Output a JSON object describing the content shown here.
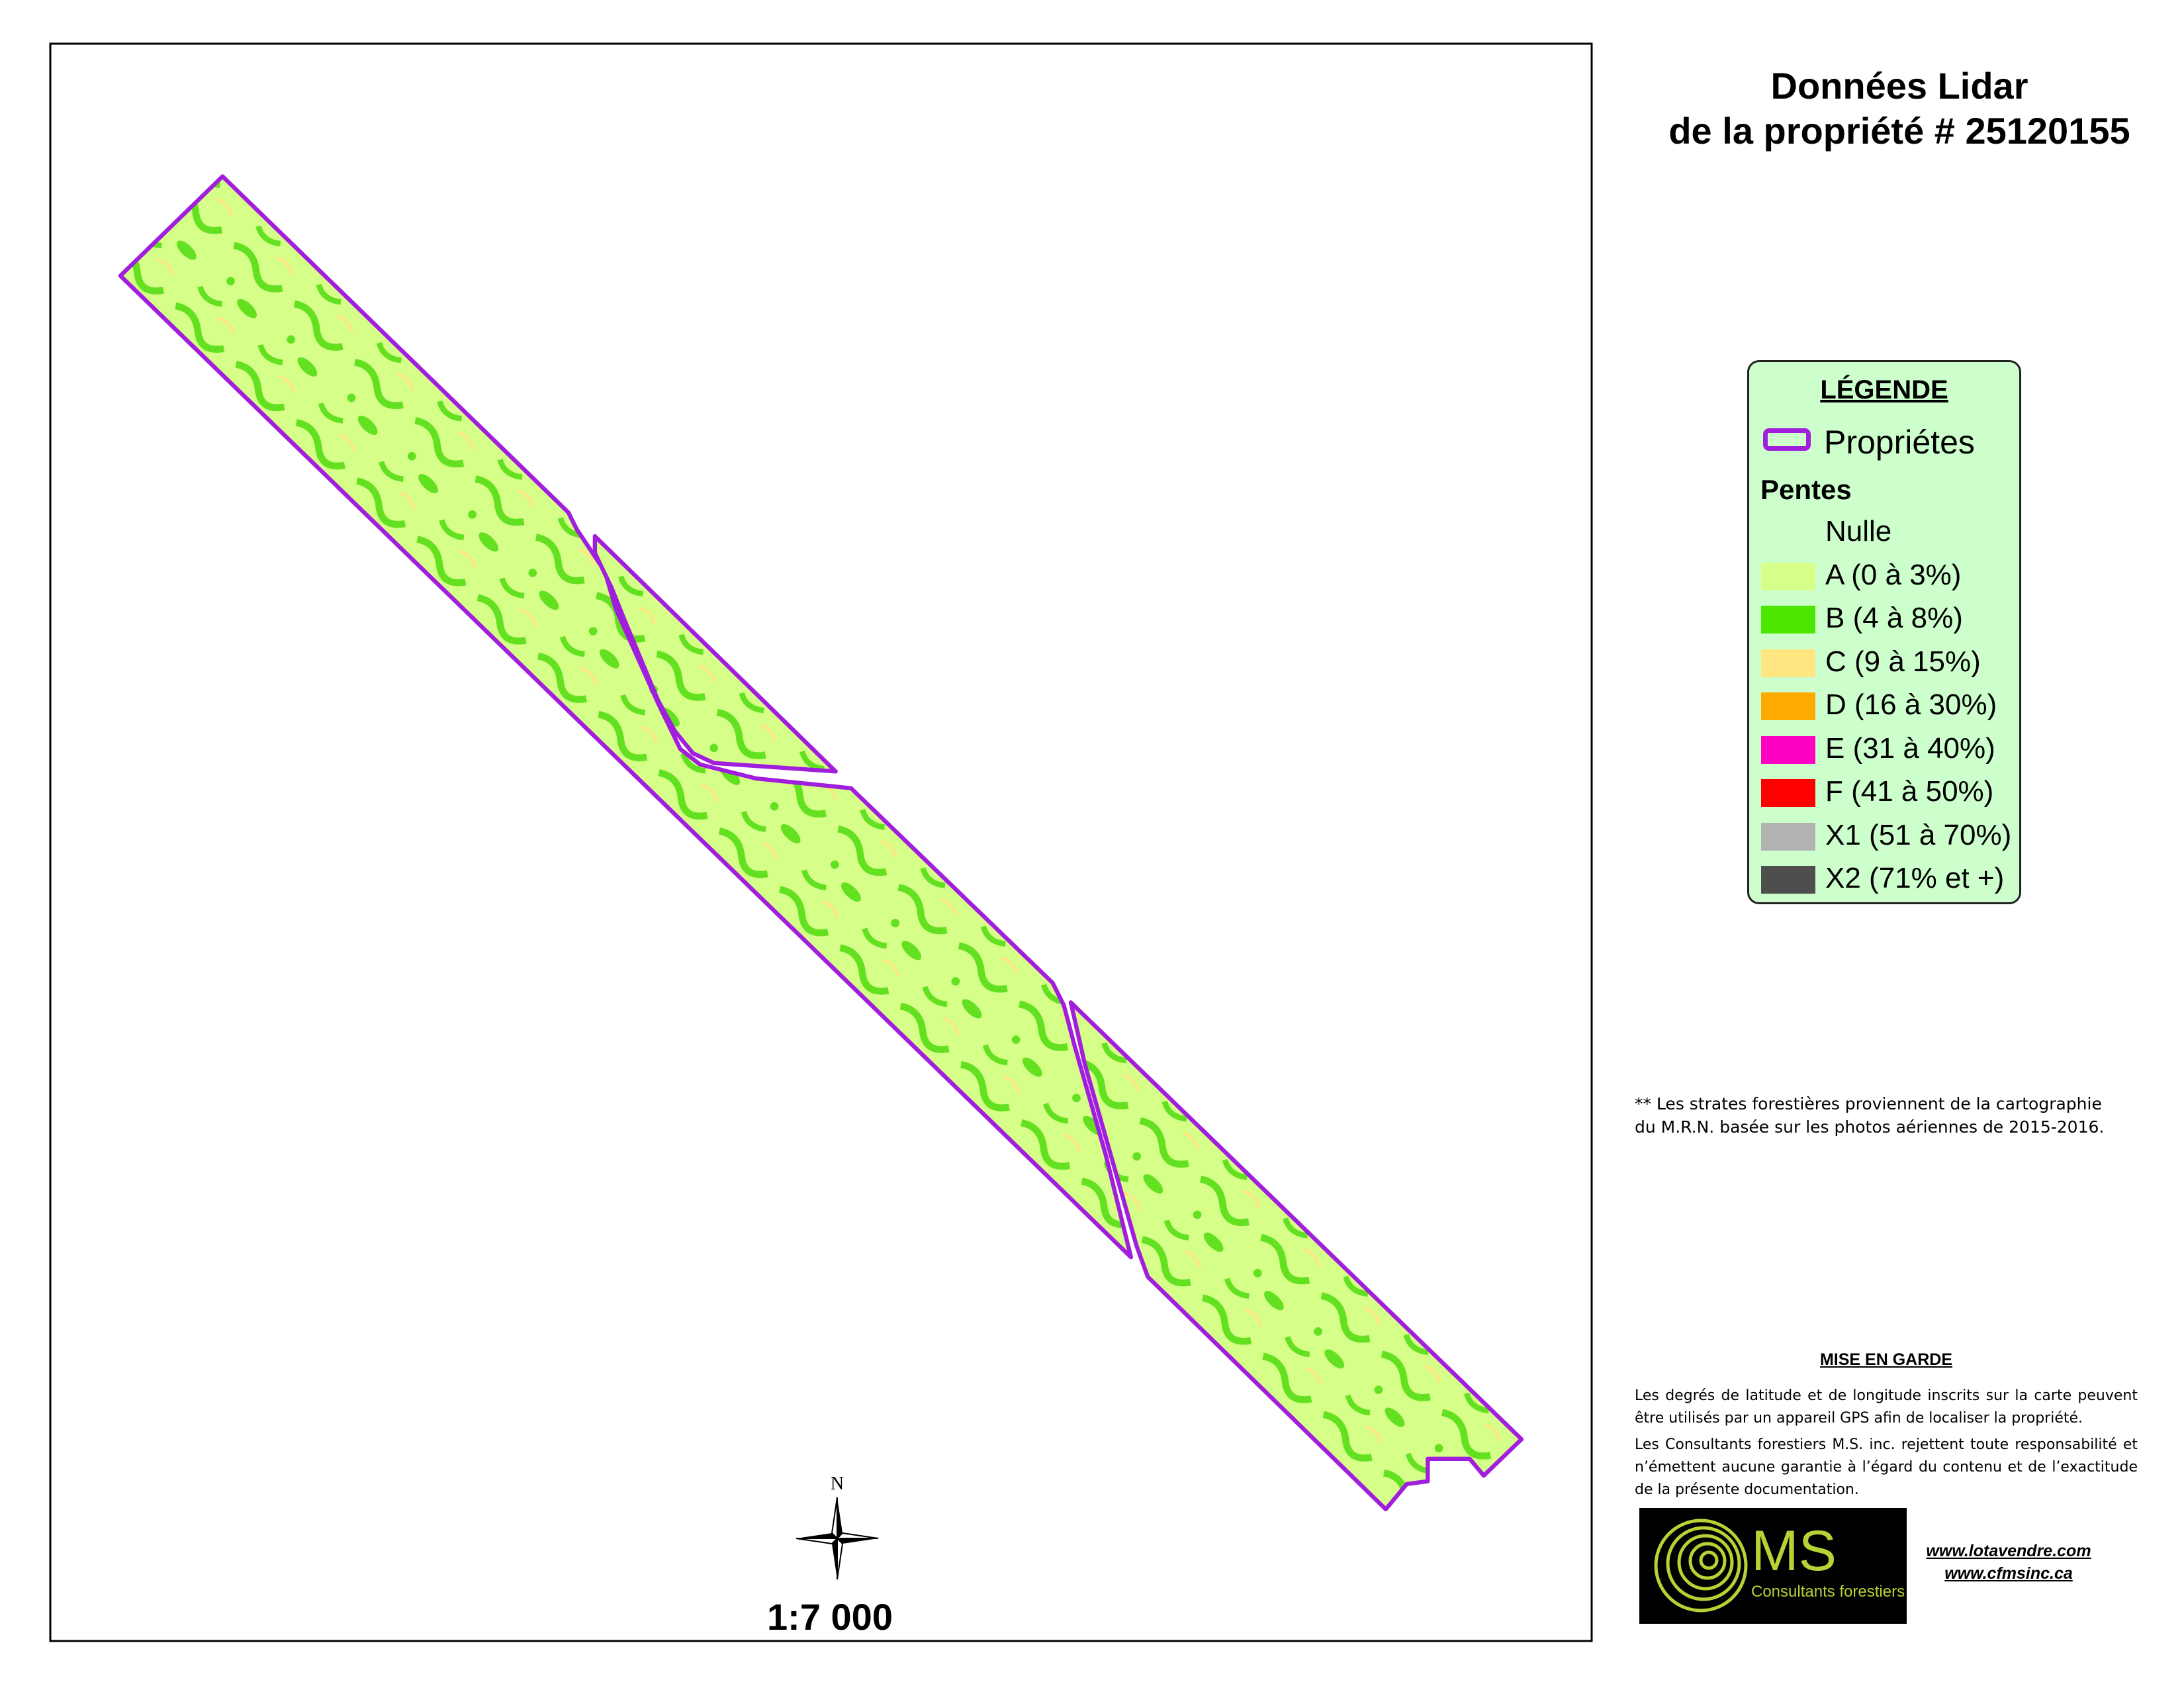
{
  "header": {
    "title_lines": [
      "Données Lidar",
      "de la propriété # 25120155"
    ]
  },
  "legend": {
    "title": "LÉGENDE",
    "boundary": {
      "label": "Propriétes",
      "color": "#a11fdc"
    },
    "section": "Pentes",
    "items": [
      {
        "label": "Nulle"
      },
      {
        "label": "A (0 à 3%)",
        "color": "#d6ff8a"
      },
      {
        "label": "B (4 à 8%)",
        "color": "#4ce600"
      },
      {
        "label": "C (9 à 15%)",
        "color": "#ffe680"
      },
      {
        "label": "D (16 à 30%)",
        "color": "#ffaa00"
      },
      {
        "label": "E (31 à 40%)",
        "color": "#ff00c5"
      },
      {
        "label": "F (41 à 50%)",
        "color": "#ff0000"
      },
      {
        "label": "X1 (51 à 70%)",
        "color": "#b2b2b2"
      },
      {
        "label": "X2 (71% et +)",
        "color": "#4e4e4e"
      }
    ]
  },
  "note": {
    "lines": [
      "** Les strates forestières proviennent de la cartographie",
      "du M.R.N.  basée sur les photos aériennes  de 2015-2016."
    ]
  },
  "warning": {
    "title": "MISE EN GARDE",
    "paragraphs": [
      "Les degrés de latitude et de longitude inscrits sur la carte peuvent être utilisés par un appareil GPS afin de localiser la propriété.",
      "Les Consultants forestiers M.S. inc. rejettent toute responsabilité et n’émettent aucune garantie à l’égard du contenu et de l’exactitude de la présente documentation."
    ]
  },
  "logo": {
    "mark": "MS",
    "text": "Consultants forestiers"
  },
  "links": [
    "www.lotavendre.com",
    "www.cfmsinc.ca"
  ],
  "map": {
    "north": "N",
    "scale": "1:7 000"
  }
}
